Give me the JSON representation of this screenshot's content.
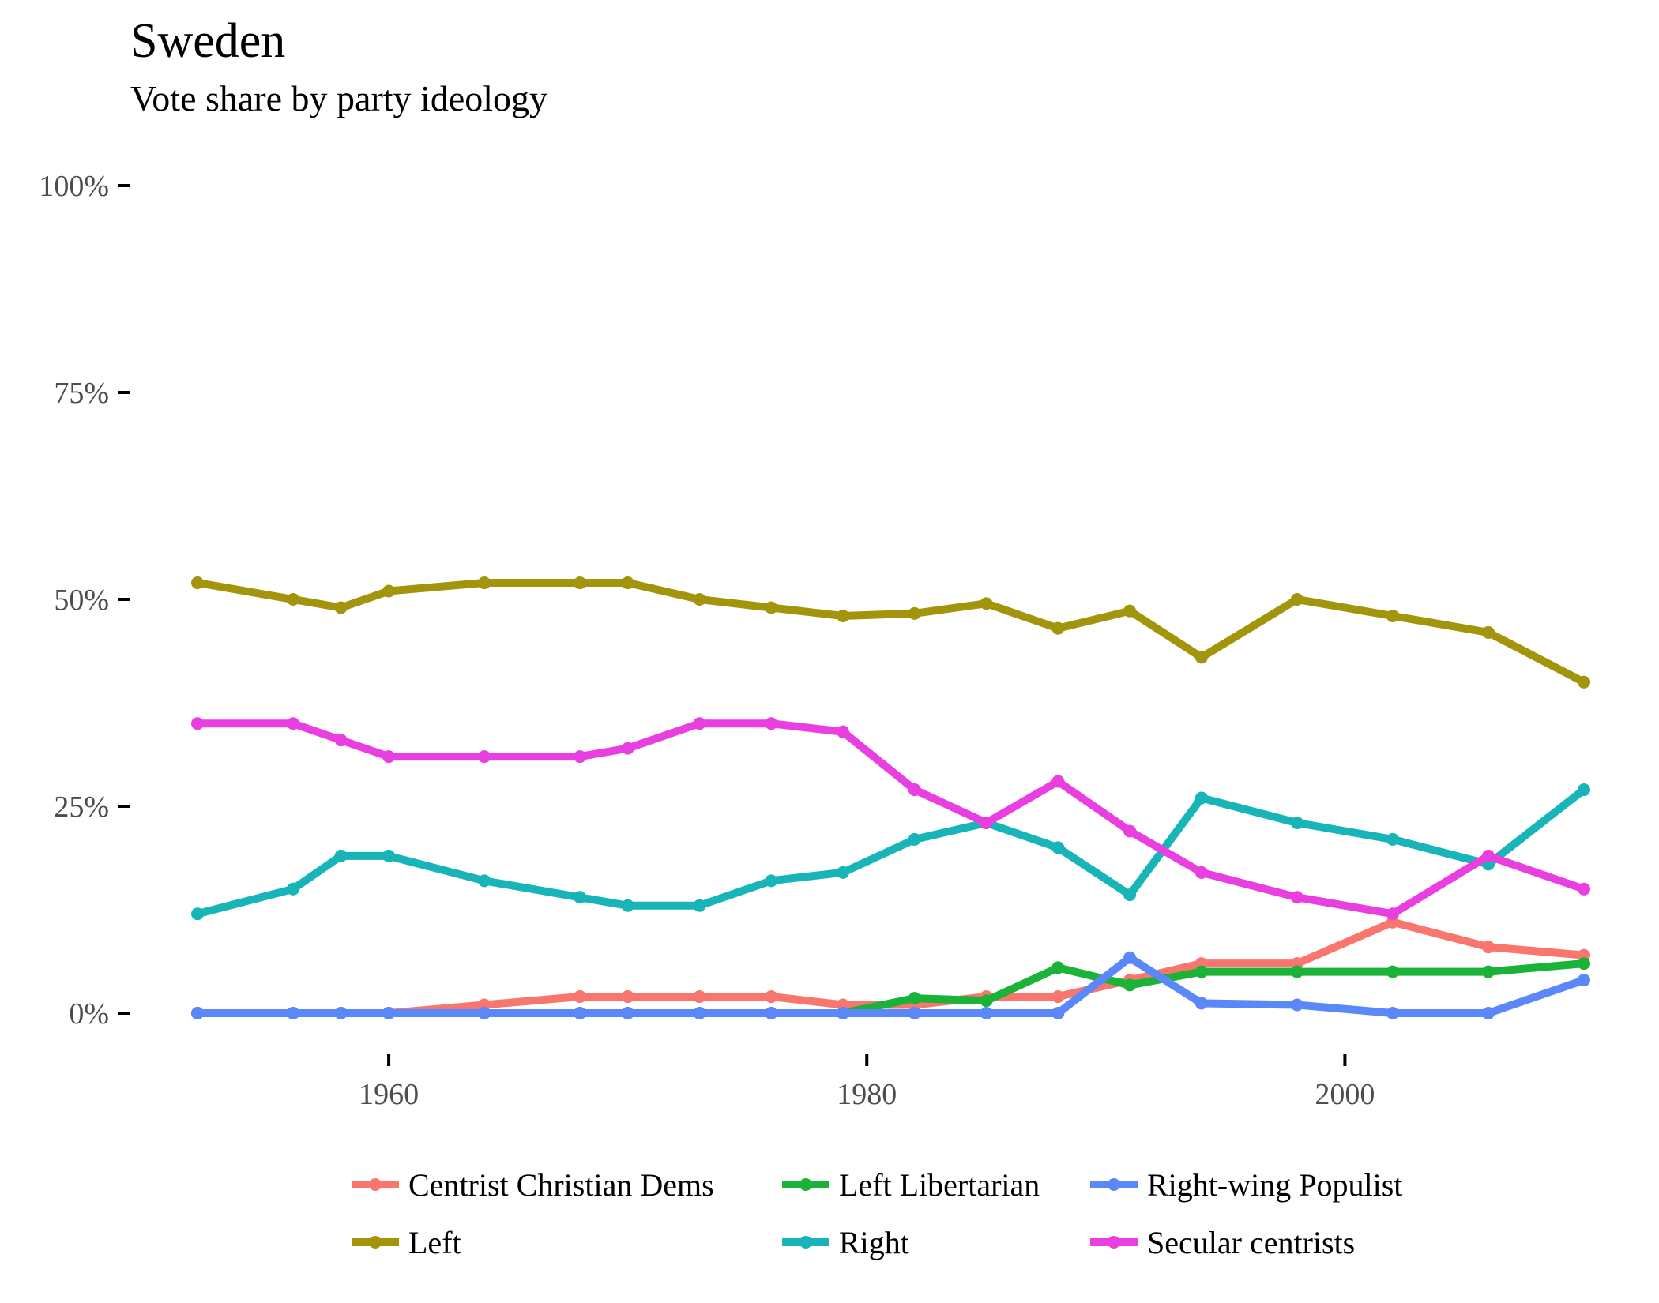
{
  "chart_data": {
    "type": "line",
    "title": "Sweden",
    "subtitle": "Vote share by party ideology",
    "xlabel": "",
    "ylabel": "",
    "xlim": [
      1952,
      2010
    ],
    "ylim": [
      0,
      100
    ],
    "x_ticks": [
      1960,
      1980,
      2000
    ],
    "x_tick_labels": [
      "1960",
      "1980",
      "2000"
    ],
    "y_ticks": [
      0,
      25,
      50,
      75,
      100
    ],
    "y_tick_labels": [
      "0%",
      "25%",
      "50%",
      "75%",
      "100%"
    ],
    "grid": false,
    "legend_position": "bottom",
    "x": [
      1952,
      1956,
      1958,
      1960,
      1964,
      1968,
      1970,
      1973,
      1976,
      1979,
      1982,
      1985,
      1988,
      1991,
      1994,
      1998,
      2002,
      2006,
      2010
    ],
    "series": [
      {
        "name": "Centrist Christian Dems",
        "color": "#F8766D",
        "values": [
          0,
          0,
          0,
          0,
          1,
          2,
          2,
          2,
          2,
          1,
          1,
          2,
          2,
          4,
          6,
          6,
          11,
          8,
          7
        ]
      },
      {
        "name": "Left Libertarian",
        "color": "#1BB238",
        "values": [
          0,
          0,
          0,
          0,
          0,
          0,
          0,
          0,
          0,
          0,
          1.8,
          1.5,
          5.5,
          3.4,
          5,
          5,
          5,
          5,
          6
        ]
      },
      {
        "name": "Right-wing Populist",
        "color": "#5A87FA",
        "values": [
          0,
          0,
          0,
          0,
          0,
          0,
          0,
          0,
          0,
          0,
          0,
          0,
          0,
          6.7,
          1.2,
          1,
          0,
          0,
          4
        ]
      },
      {
        "name": "Left",
        "color": "#A3950B",
        "values": [
          52,
          50,
          49,
          51,
          52,
          52,
          52,
          50,
          49,
          48,
          48.3,
          49.5,
          46.5,
          48.6,
          43,
          50,
          48,
          46,
          40
        ]
      },
      {
        "name": "Right",
        "color": "#17B5B8",
        "values": [
          12,
          15,
          19,
          19,
          16,
          14,
          13,
          13,
          16,
          17,
          21,
          23,
          20,
          14.3,
          26,
          23,
          21,
          18,
          27
        ]
      },
      {
        "name": "Secular centrists",
        "color": "#E93FE0",
        "values": [
          35,
          35,
          33,
          31,
          31,
          31,
          32,
          35,
          35,
          34,
          27,
          23,
          28,
          22,
          17,
          14,
          12,
          19,
          15
        ]
      }
    ],
    "legend_order": [
      "Centrist Christian Dems",
      "Left Libertarian",
      "Right-wing Populist",
      "Left",
      "Right",
      "Secular centrists"
    ]
  }
}
